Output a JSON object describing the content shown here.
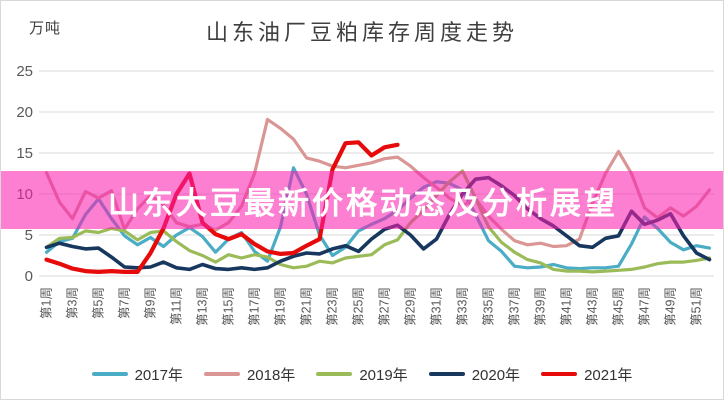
{
  "banner": {
    "text": "山东大豆最新价格动态及分析展望",
    "bg_rgba": "rgba(250,30,175,0.57)",
    "text_color": "#FFFFFF"
  },
  "chart_data": {
    "type": "line",
    "title": "山东油厂豆粕库存周度走势",
    "unit_label": "万吨",
    "xlabel": "",
    "ylabel": "万吨",
    "ylim": [
      0,
      25
    ],
    "y_ticks": [
      0,
      5,
      10,
      15,
      20,
      25
    ],
    "grid": "horizontal",
    "legend_position": "bottom",
    "weeks_total": 52,
    "x_tick_labels": [
      "第1周",
      "第3周",
      "第5周",
      "第7周",
      "第9周",
      "第11周",
      "第13周",
      "第15周",
      "第17周",
      "第19周",
      "第21周",
      "第23周",
      "第25周",
      "第27周",
      "第29周",
      "第31周",
      "第33周",
      "第35周",
      "第37周",
      "第39周",
      "第41周",
      "第43周",
      "第45周",
      "第47周",
      "第49周",
      "第51周"
    ],
    "series": [
      {
        "name": "2017年",
        "color": "#4BACC6",
        "width": 3.2,
        "values": [
          2.9,
          4.2,
          4.6,
          7.5,
          9.4,
          7.0,
          4.9,
          3.8,
          4.7,
          3.6,
          5.0,
          5.9,
          4.8,
          2.9,
          4.5,
          5.3,
          3.0,
          1.8,
          6.0,
          13.2,
          10.0,
          5.0,
          2.5,
          3.5,
          5.5,
          6.3,
          7.0,
          8.0,
          9.5,
          10.8,
          11.5,
          11.3,
          10.5,
          7.5,
          4.3,
          3.0,
          1.2,
          1.0,
          1.1,
          1.4,
          1.0,
          0.9,
          1.0,
          1.0,
          1.2,
          3.9,
          7.2,
          5.8,
          4.1,
          3.2,
          3.7,
          3.4
        ]
      },
      {
        "name": "2018年",
        "color": "#D99694",
        "width": 3.2,
        "values": [
          12.6,
          9.0,
          7.0,
          10.3,
          9.5,
          10.4,
          5.7,
          8.2,
          9.8,
          8.7,
          6.5,
          6.0,
          6.3,
          5.6,
          6.5,
          8.5,
          12.5,
          19.1,
          18.0,
          16.7,
          14.4,
          14.0,
          13.4,
          13.2,
          13.5,
          13.8,
          14.3,
          14.5,
          13.4,
          12.0,
          10.8,
          9.5,
          8.6,
          9.4,
          7.3,
          5.7,
          4.3,
          3.8,
          4.0,
          3.6,
          3.7,
          4.5,
          8.9,
          12.5,
          15.2,
          12.5,
          8.3,
          7.1,
          8.3,
          7.3,
          8.5,
          10.5
        ]
      },
      {
        "name": "2019年",
        "color": "#9BBB59",
        "width": 3.2,
        "values": [
          3.5,
          4.6,
          4.7,
          5.5,
          5.3,
          5.8,
          5.5,
          4.4,
          5.3,
          5.5,
          4.2,
          3.1,
          2.5,
          1.7,
          2.6,
          2.2,
          2.6,
          2.3,
          1.4,
          1.0,
          1.2,
          1.8,
          1.6,
          2.2,
          2.4,
          2.6,
          3.8,
          4.4,
          6.5,
          8.0,
          9.8,
          11.5,
          12.8,
          9.5,
          6.0,
          4.1,
          2.9,
          2.0,
          1.6,
          0.8,
          0.6,
          0.6,
          0.5,
          0.6,
          0.7,
          0.8,
          1.1,
          1.5,
          1.7,
          1.7,
          1.9,
          2.2
        ]
      },
      {
        "name": "2020年",
        "color": "#17375E",
        "width": 3.6,
        "values": [
          3.5,
          4.0,
          3.6,
          3.3,
          3.4,
          2.3,
          1.1,
          1.0,
          1.1,
          1.7,
          1.0,
          0.8,
          1.4,
          0.9,
          0.8,
          1.0,
          0.8,
          1.0,
          1.8,
          2.4,
          2.8,
          2.7,
          3.3,
          3.7,
          3.0,
          4.5,
          5.7,
          6.2,
          5.0,
          3.3,
          4.5,
          7.5,
          10.0,
          11.8,
          12.0,
          11.0,
          9.8,
          8.2,
          7.0,
          6.1,
          4.9,
          3.7,
          3.5,
          4.6,
          4.9,
          7.9,
          6.3,
          6.8,
          7.6,
          4.9,
          2.8,
          2.0
        ]
      },
      {
        "name": "2021年",
        "color": "#E60A0A",
        "width": 4.2,
        "values": [
          2.0,
          1.5,
          0.9,
          0.6,
          0.5,
          0.6,
          0.5,
          0.5,
          2.8,
          5.8,
          10.0,
          12.5,
          6.5,
          5.1,
          4.5,
          5.1,
          3.9,
          3.0,
          2.7,
          2.8,
          3.7,
          4.5,
          13.0,
          16.2,
          16.3,
          14.7,
          15.7,
          16.0
        ]
      }
    ]
  }
}
